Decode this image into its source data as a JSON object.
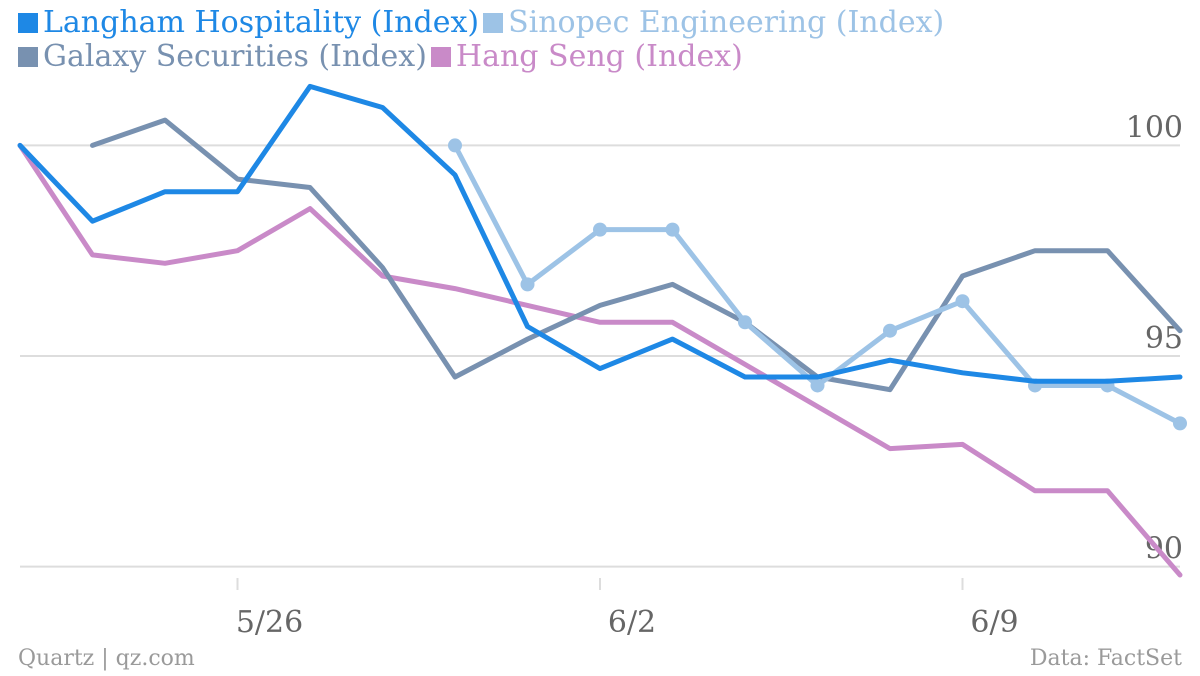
{
  "chart_data": {
    "type": "line",
    "x": [
      "5/21",
      "5/22",
      "5/23",
      "5/26",
      "5/27",
      "5/28",
      "5/29",
      "5/30",
      "6/2",
      "6/3",
      "6/4",
      "6/5",
      "6/6",
      "6/9",
      "6/10",
      "6/11",
      "6/12"
    ],
    "xticks": [
      {
        "at": "5/26",
        "label": "5/26"
      },
      {
        "at": "6/2",
        "label": "6/2"
      },
      {
        "at": "6/9",
        "label": "6/9"
      }
    ],
    "yticks": [
      100,
      95,
      90
    ],
    "ylim": [
      89.8,
      101.6
    ],
    "grid": true,
    "legend_position": "top-left",
    "series": [
      {
        "name": "Langham Hospitality (Index)",
        "color": "#1e88e5",
        "markers": false,
        "points": [
          [
            0,
            100
          ],
          [
            1,
            98.2
          ],
          [
            2,
            98.9
          ],
          [
            3,
            98.9
          ],
          [
            4,
            101.4
          ],
          [
            5,
            100.9
          ],
          [
            6,
            99.3
          ],
          [
            7,
            95.7
          ],
          [
            8,
            94.7
          ],
          [
            9,
            95.4
          ],
          [
            10,
            94.5
          ],
          [
            11,
            94.5
          ],
          [
            12,
            94.9
          ],
          [
            13,
            94.6
          ],
          [
            14,
            94.4
          ],
          [
            15,
            94.4
          ],
          [
            16,
            94.5
          ]
        ]
      },
      {
        "name": "Sinopec Engineering (Index)",
        "color": "#9dc3e6",
        "markers": true,
        "points": [
          [
            6,
            100
          ],
          [
            7,
            96.7
          ],
          [
            8,
            98.0
          ],
          [
            9,
            98.0
          ],
          [
            10,
            95.8
          ],
          [
            11,
            94.3
          ],
          [
            12,
            95.6
          ],
          [
            13,
            96.3
          ],
          [
            14,
            94.3
          ],
          [
            15,
            94.3
          ],
          [
            16,
            93.4
          ]
        ]
      },
      {
        "name": "Galaxy Securities (Index)",
        "color": "#7891b0",
        "markers": false,
        "points": [
          [
            1,
            100
          ],
          [
            2,
            100.6
          ],
          [
            3,
            99.2
          ],
          [
            4,
            99.0
          ],
          [
            5,
            97.1
          ],
          [
            6,
            94.5
          ],
          [
            7,
            95.4
          ],
          [
            8,
            96.2
          ],
          [
            9,
            96.7
          ],
          [
            10,
            95.8
          ],
          [
            11,
            94.5
          ],
          [
            12,
            94.2
          ],
          [
            13,
            96.9
          ],
          [
            14,
            97.5
          ],
          [
            15,
            97.5
          ],
          [
            16,
            95.6
          ]
        ]
      },
      {
        "name": "Hang Seng (Index)",
        "color": "#c98ac8",
        "markers": false,
        "points": [
          [
            0,
            100
          ],
          [
            1,
            97.4
          ],
          [
            2,
            97.2
          ],
          [
            3,
            97.5
          ],
          [
            4,
            98.5
          ],
          [
            5,
            96.9
          ],
          [
            6,
            96.6
          ],
          [
            7,
            96.2
          ],
          [
            8,
            95.8
          ],
          [
            9,
            95.8
          ],
          [
            10,
            94.8
          ],
          [
            11,
            93.8
          ],
          [
            12,
            92.8
          ],
          [
            13,
            92.9
          ],
          [
            14,
            91.8
          ],
          [
            15,
            91.8
          ],
          [
            16,
            89.8
          ]
        ]
      }
    ]
  },
  "footer": {
    "source_left": "Quartz | qz.com",
    "source_right": "Data: FactSet"
  },
  "colors": {
    "grid": "#dddddd",
    "axis_text": "#666666",
    "footer_text": "#9a9a9a"
  }
}
